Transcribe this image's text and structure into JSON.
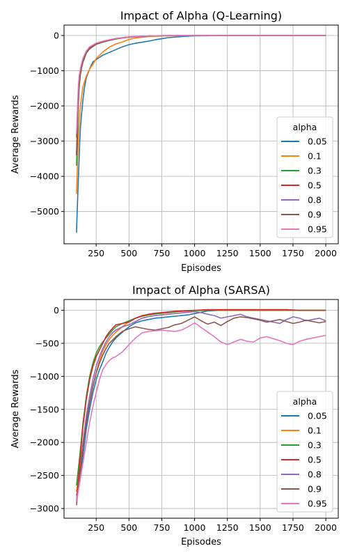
{
  "chart_data": [
    {
      "type": "line",
      "title": "Impact of Alpha (Q-Learning)",
      "xlabel": "Episodes",
      "ylabel": "Average Rewards",
      "xlim": [
        5,
        2095
      ],
      "ylim": [
        -5917,
        297
      ],
      "xticks": [
        250,
        500,
        750,
        1000,
        1250,
        1500,
        1750,
        2000
      ],
      "yticks": [
        0,
        -1000,
        -2000,
        -3000,
        -4000,
        -5000
      ],
      "grid": true,
      "legend": {
        "title": "alpha",
        "position": "lower-right"
      },
      "series": [
        {
          "name": "0.05",
          "color": "#1f77b4",
          "x": [
            100,
            105,
            110,
            115,
            120,
            125,
            130,
            140,
            150,
            160,
            175,
            200,
            225,
            250,
            300,
            350,
            400,
            450,
            500,
            550,
            600,
            650,
            700,
            750,
            800,
            900,
            1000,
            1100,
            1250,
            1500,
            1750,
            2000
          ],
          "y": [
            -5600,
            -5000,
            -4500,
            -4000,
            -3500,
            -3000,
            -2600,
            -2200,
            -1800,
            -1500,
            -1200,
            -950,
            -750,
            -680,
            -560,
            -480,
            -400,
            -320,
            -260,
            -220,
            -190,
            -160,
            -120,
            -90,
            -60,
            -30,
            -10,
            -5,
            0,
            0,
            0,
            0
          ]
        },
        {
          "name": "0.1",
          "color": "#ff7f0e",
          "x": [
            100,
            105,
            110,
            120,
            130,
            140,
            150,
            175,
            200,
            225,
            250,
            300,
            350,
            400,
            450,
            500,
            550,
            600,
            650,
            700,
            800,
            900,
            1000,
            1250,
            1500,
            1750,
            2000
          ],
          "y": [
            -4500,
            -3900,
            -3300,
            -2500,
            -2000,
            -1700,
            -1450,
            -1150,
            -950,
            -820,
            -650,
            -470,
            -330,
            -240,
            -180,
            -110,
            -70,
            -50,
            -30,
            -20,
            -10,
            -5,
            0,
            0,
            0,
            0,
            0
          ]
        },
        {
          "name": "0.3",
          "color": "#2ca02c",
          "x": [
            100,
            105,
            110,
            115,
            120,
            130,
            140,
            150,
            175,
            200,
            250,
            300,
            350,
            400,
            450,
            500,
            600,
            700,
            800,
            1000,
            1250,
            1500,
            1750,
            2000
          ],
          "y": [
            -3700,
            -3100,
            -2500,
            -1900,
            -1500,
            -1100,
            -900,
            -750,
            -500,
            -380,
            -250,
            -190,
            -140,
            -100,
            -70,
            -50,
            -25,
            -10,
            -5,
            0,
            0,
            0,
            0,
            0
          ]
        },
        {
          "name": "0.5",
          "color": "#d62728",
          "x": [
            100,
            105,
            110,
            115,
            120,
            130,
            140,
            150,
            175,
            200,
            250,
            300,
            350,
            400,
            450,
            500,
            600,
            700,
            800,
            1000,
            1250,
            1500,
            1750,
            2000
          ],
          "y": [
            -3400,
            -2800,
            -2200,
            -1700,
            -1350,
            -1050,
            -880,
            -720,
            -480,
            -360,
            -240,
            -180,
            -130,
            -90,
            -65,
            -45,
            -20,
            -8,
            -3,
            0,
            0,
            0,
            0,
            0
          ]
        },
        {
          "name": "0.8",
          "color": "#9467bd",
          "x": [
            100,
            105,
            110,
            115,
            120,
            130,
            140,
            150,
            175,
            200,
            250,
            300,
            350,
            400,
            450,
            500,
            600,
            700,
            800,
            1000,
            1250,
            1500,
            1750,
            2000
          ],
          "y": [
            -2900,
            -2400,
            -1900,
            -1500,
            -1200,
            -950,
            -800,
            -660,
            -450,
            -330,
            -220,
            -165,
            -120,
            -85,
            -60,
            -40,
            -18,
            -7,
            -2,
            0,
            0,
            0,
            0,
            0
          ]
        },
        {
          "name": "0.9",
          "color": "#8c564b",
          "x": [
            100,
            105,
            110,
            115,
            120,
            130,
            140,
            150,
            175,
            200,
            250,
            300,
            350,
            400,
            450,
            500,
            600,
            700,
            800,
            1000,
            1250,
            1500,
            1750,
            2000
          ],
          "y": [
            -3400,
            -2700,
            -2100,
            -1650,
            -1300,
            -1000,
            -840,
            -690,
            -470,
            -345,
            -230,
            -170,
            -125,
            -88,
            -62,
            -42,
            -19,
            -7,
            -2,
            0,
            0,
            0,
            0,
            0
          ]
        },
        {
          "name": "0.95",
          "color": "#e377c2",
          "x": [
            100,
            105,
            110,
            115,
            120,
            130,
            140,
            150,
            175,
            200,
            250,
            300,
            350,
            400,
            450,
            500,
            600,
            700,
            800,
            1000,
            1250,
            1500,
            1750,
            2000
          ],
          "y": [
            -2800,
            -2300,
            -1800,
            -1400,
            -1150,
            -920,
            -780,
            -640,
            -440,
            -320,
            -215,
            -160,
            -118,
            -82,
            -58,
            -39,
            -17,
            -6,
            -2,
            0,
            0,
            0,
            0,
            0
          ]
        }
      ]
    },
    {
      "type": "line",
      "title": "Impact of Alpha (SARSA)",
      "xlabel": "Episodes",
      "ylabel": "Average Rewards",
      "xlim": [
        5,
        2095
      ],
      "ylim": [
        -3147,
        163
      ],
      "xticks": [
        250,
        500,
        750,
        1000,
        1250,
        1500,
        1750,
        2000
      ],
      "yticks": [
        0,
        -500,
        -1000,
        -1500,
        -2000,
        -2500,
        -3000
      ],
      "grid": true,
      "legend": {
        "title": "alpha",
        "position": "lower-right"
      },
      "series": [
        {
          "name": "0.05",
          "color": "#1f77b4",
          "x": [
            100,
            125,
            150,
            175,
            200,
            225,
            250,
            275,
            300,
            325,
            350,
            375,
            400,
            450,
            500,
            550,
            600,
            650,
            700,
            750,
            800,
            850,
            900,
            950,
            1000,
            1050,
            1100,
            1200,
            1300,
            1400,
            1500,
            1600,
            1700,
            1800,
            1900,
            2000
          ],
          "y": [
            -2800,
            -2600,
            -2200,
            -1800,
            -1500,
            -1250,
            -1050,
            -900,
            -780,
            -650,
            -560,
            -480,
            -420,
            -330,
            -250,
            -190,
            -160,
            -140,
            -120,
            -110,
            -100,
            -90,
            -80,
            -70,
            -50,
            -30,
            -10,
            0,
            0,
            0,
            0,
            0,
            0,
            0,
            0,
            0
          ]
        },
        {
          "name": "0.1",
          "color": "#ff7f0e",
          "x": [
            100,
            125,
            150,
            175,
            200,
            225,
            250,
            275,
            300,
            325,
            350,
            375,
            400,
            450,
            500,
            550,
            600,
            650,
            700,
            750,
            800,
            850,
            900,
            950,
            1000,
            1100,
            1200,
            1300,
            1400,
            1500,
            1600,
            1700,
            1800,
            1900,
            2000
          ],
          "y": [
            -2750,
            -2400,
            -2000,
            -1650,
            -1400,
            -1150,
            -950,
            -760,
            -620,
            -520,
            -440,
            -380,
            -330,
            -250,
            -170,
            -120,
            -90,
            -70,
            -55,
            -45,
            -35,
            -25,
            -15,
            -10,
            0,
            0,
            0,
            0,
            0,
            0,
            0,
            0,
            0,
            0,
            0
          ]
        },
        {
          "name": "0.3",
          "color": "#2ca02c",
          "x": [
            100,
            125,
            150,
            175,
            200,
            225,
            250,
            275,
            300,
            325,
            350,
            375,
            400,
            450,
            500,
            550,
            600,
            650,
            700,
            750,
            800,
            850,
            900,
            950,
            1000,
            1100,
            1200,
            1300,
            1400,
            1500,
            1600,
            1700,
            1800,
            1900,
            2000
          ],
          "y": [
            -2650,
            -2200,
            -1700,
            -1300,
            -1000,
            -800,
            -650,
            -550,
            -480,
            -420,
            -360,
            -300,
            -250,
            -200,
            -160,
            -120,
            -90,
            -70,
            -55,
            -45,
            -35,
            -25,
            -15,
            -10,
            -5,
            0,
            0,
            0,
            0,
            0,
            0,
            0,
            0,
            0,
            0
          ]
        },
        {
          "name": "0.5",
          "color": "#d62728",
          "x": [
            100,
            125,
            150,
            175,
            200,
            225,
            250,
            275,
            300,
            325,
            350,
            375,
            400,
            450,
            500,
            550,
            600,
            650,
            700,
            750,
            800,
            850,
            900,
            950,
            1000,
            1100,
            1200,
            1300,
            1400,
            1500,
            1600,
            1700,
            1800,
            1900,
            2000
          ],
          "y": [
            -2900,
            -2300,
            -1750,
            -1350,
            -1050,
            -850,
            -700,
            -600,
            -500,
            -400,
            -330,
            -270,
            -220,
            -200,
            -180,
            -120,
            -80,
            -60,
            -45,
            -35,
            -25,
            -15,
            -10,
            -5,
            0,
            10,
            10,
            10,
            10,
            10,
            10,
            10,
            0,
            0,
            0
          ]
        },
        {
          "name": "0.8",
          "color": "#9467bd",
          "x": [
            100,
            125,
            150,
            175,
            200,
            225,
            250,
            275,
            300,
            325,
            350,
            375,
            400,
            450,
            500,
            550,
            600,
            650,
            700,
            750,
            800,
            850,
            900,
            950,
            1000,
            1050,
            1100,
            1150,
            1200,
            1250,
            1300,
            1350,
            1400,
            1450,
            1500,
            1550,
            1600,
            1650,
            1700,
            1750,
            1800,
            1850,
            1900,
            1950,
            2000
          ],
          "y": [
            -2900,
            -2500,
            -2000,
            -1600,
            -1300,
            -1050,
            -850,
            -700,
            -580,
            -480,
            -400,
            -340,
            -300,
            -250,
            -220,
            -170,
            -120,
            -95,
            -80,
            -70,
            -60,
            -50,
            -40,
            -30,
            -20,
            -35,
            -60,
            -80,
            -120,
            -100,
            -80,
            -60,
            -100,
            -120,
            -140,
            -160,
            -180,
            -200,
            -140,
            -100,
            -120,
            -160,
            -140,
            -120,
            -160
          ]
        },
        {
          "name": "0.9",
          "color": "#8c564b",
          "x": [
            100,
            125,
            150,
            175,
            200,
            225,
            250,
            275,
            300,
            325,
            350,
            375,
            400,
            450,
            500,
            550,
            600,
            650,
            700,
            750,
            800,
            850,
            900,
            950,
            1000,
            1050,
            1100,
            1150,
            1200,
            1250,
            1300,
            1350,
            1400,
            1450,
            1500,
            1550,
            1600,
            1650,
            1700,
            1750,
            1800,
            1850,
            1900,
            1950,
            2000
          ],
          "y": [
            -2950,
            -2500,
            -2050,
            -1700,
            -1400,
            -1150,
            -950,
            -800,
            -680,
            -580,
            -500,
            -450,
            -400,
            -320,
            -280,
            -250,
            -270,
            -290,
            -300,
            -280,
            -260,
            -220,
            -200,
            -150,
            -100,
            -160,
            -210,
            -180,
            -230,
            -170,
            -120,
            -100,
            -110,
            -130,
            -150,
            -180,
            -160,
            -140,
            -170,
            -200,
            -180,
            -150,
            -170,
            -190,
            -170
          ]
        },
        {
          "name": "0.95",
          "color": "#e377c2",
          "x": [
            100,
            125,
            150,
            175,
            200,
            225,
            250,
            275,
            300,
            325,
            350,
            375,
            400,
            450,
            500,
            550,
            600,
            650,
            700,
            750,
            800,
            850,
            900,
            950,
            1000,
            1050,
            1100,
            1150,
            1200,
            1250,
            1300,
            1350,
            1400,
            1450,
            1500,
            1550,
            1600,
            1650,
            1700,
            1750,
            1800,
            1850,
            1900,
            1950,
            2000
          ],
          "y": [
            -2900,
            -2600,
            -2300,
            -2000,
            -1700,
            -1450,
            -1250,
            -1050,
            -900,
            -820,
            -760,
            -720,
            -700,
            -630,
            -520,
            -420,
            -340,
            -320,
            -310,
            -300,
            -310,
            -320,
            -300,
            -250,
            -190,
            -260,
            -330,
            -400,
            -480,
            -520,
            -480,
            -440,
            -470,
            -480,
            -420,
            -400,
            -430,
            -460,
            -500,
            -520,
            -470,
            -440,
            -420,
            -400,
            -380
          ]
        }
      ]
    }
  ]
}
